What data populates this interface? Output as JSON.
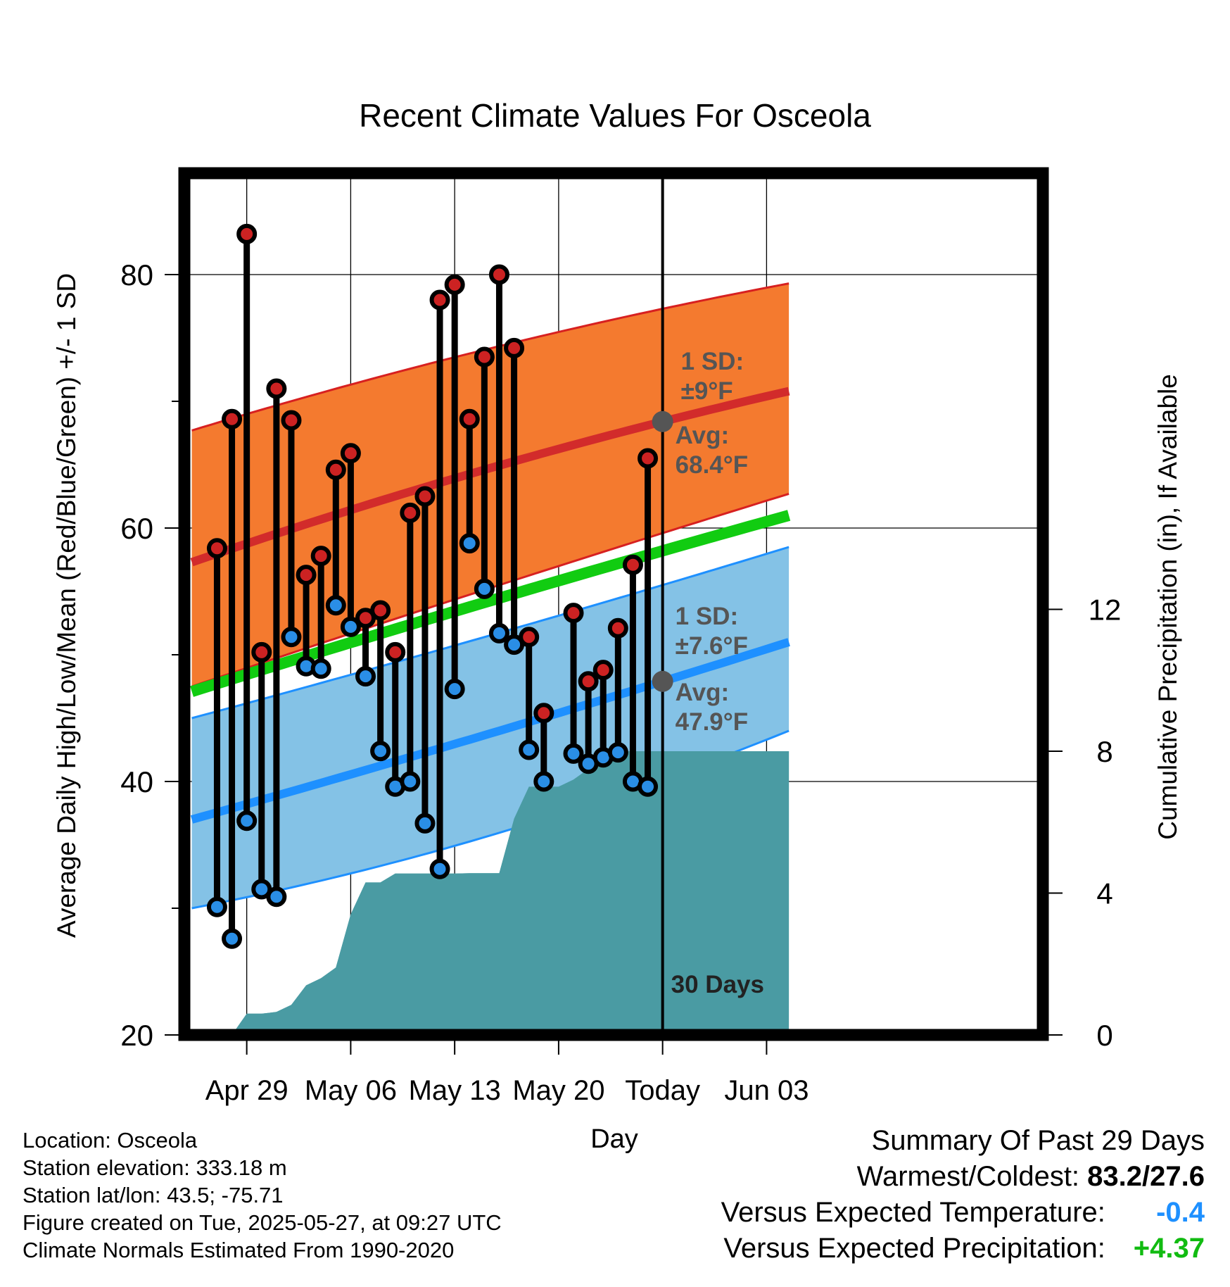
{
  "colors": {
    "background": "#ffffff",
    "frame": "#000000",
    "high_band": "#f47a2f",
    "high_band_edge": "#d72020",
    "high_mean": "#d22b2b",
    "low_band": "#84c2e6",
    "low_band_edge": "#1e90ff",
    "low_mean": "#1e90ff",
    "overall_mean": "#11cc11",
    "precip": "#4a9ba3",
    "high_dot": "#cc2222",
    "low_dot": "#2a8ee6",
    "annotation": "#555555",
    "temp_delta": "#1e90ff",
    "precip_delta": "#11bb11"
  },
  "chart_data": {
    "type": "line",
    "title": "Recent Climate Values For Osceola",
    "xlabel": "Day",
    "ylabel": "Average Daily High/Low/Mean (Red/Blue/Green) +/- 1 SD",
    "y2label": "Cumulative Precipitation (in), If Available",
    "ylim": [
      20,
      88
    ],
    "y2lim": [
      0,
      24.3
    ],
    "yticks": [
      "20",
      "40",
      "60",
      "80"
    ],
    "y2ticks": [
      "0",
      "4",
      "8",
      "12"
    ],
    "xlim": [
      -3.2,
      54.6
    ],
    "x_tick_positions": [
      1,
      8,
      15,
      22,
      29,
      36
    ],
    "x_tick_labels": [
      "Apr 29",
      "May 06",
      "May 13",
      "May 20",
      "Today",
      "Jun 03"
    ],
    "grid": true,
    "today_index": 29,
    "today_label": "30 Days",
    "normals": {
      "x": [
        -2.7,
        29,
        37.5
      ],
      "high_mean": [
        57.3,
        68.4,
        70.8
      ],
      "high_upper": [
        67.7,
        77.3,
        79.3
      ],
      "high_lower": [
        47.5,
        59.6,
        62.7
      ],
      "overall_mean": [
        47.1,
        58.2,
        61.0
      ],
      "low_mean": [
        37.0,
        47.9,
        51.0
      ],
      "low_upper": [
        45.0,
        55.5,
        58.5
      ],
      "low_lower": [
        30.0,
        40.2,
        44.0
      ]
    },
    "high_sd_label": "1 SD:\n±9°F",
    "high_avg_label": "Avg:\n68.4°F",
    "low_sd_label": "1 SD:\n±7.6°F",
    "low_avg_label": "Avg:\n47.9°F",
    "series": [
      {
        "name": "High",
        "x": [
          -1,
          0,
          1,
          2,
          3,
          4,
          5,
          6,
          7,
          8,
          9,
          10,
          11,
          12,
          13,
          14,
          15,
          16,
          17,
          18,
          19,
          20,
          21,
          23,
          24,
          25,
          26,
          27,
          28
        ],
        "values": [
          58.4,
          68.6,
          83.2,
          50.2,
          71.0,
          68.5,
          56.3,
          57.8,
          64.6,
          65.9,
          52.9,
          53.5,
          50.2,
          61.2,
          62.5,
          78.0,
          79.2,
          68.6,
          73.5,
          80.0,
          74.2,
          51.4,
          45.4,
          53.3,
          47.9,
          48.8,
          52.1,
          57.1,
          65.5
        ]
      },
      {
        "name": "Low",
        "x": [
          -1,
          0,
          1,
          2,
          3,
          4,
          5,
          6,
          7,
          8,
          9,
          10,
          11,
          12,
          13,
          14,
          15,
          16,
          17,
          18,
          19,
          20,
          21,
          23,
          24,
          25,
          26,
          27,
          28
        ],
        "values": [
          30.1,
          27.6,
          36.9,
          31.5,
          30.9,
          51.4,
          49.1,
          48.9,
          53.9,
          52.2,
          48.3,
          42.4,
          39.6,
          40.0,
          36.7,
          33.1,
          47.3,
          58.8,
          55.2,
          51.7,
          50.8,
          42.5,
          40.0,
          42.2,
          41.4,
          41.9,
          42.3,
          40.0,
          39.6
        ]
      },
      {
        "name": "Cumulative Precipitation",
        "x": [
          -1,
          0,
          1,
          2,
          3,
          4,
          5,
          6,
          7,
          8,
          9,
          10,
          11,
          12,
          13,
          14,
          15,
          16,
          17,
          18,
          19,
          20,
          21,
          22,
          23,
          24,
          25,
          26,
          27,
          28,
          29,
          37.5
        ],
        "values": [
          0.0,
          0.0,
          0.6,
          0.6,
          0.65,
          0.85,
          1.4,
          1.6,
          1.9,
          3.4,
          4.3,
          4.3,
          4.55,
          4.55,
          4.55,
          4.55,
          4.55,
          4.56,
          4.56,
          4.56,
          6.1,
          7.0,
          7.0,
          7.0,
          7.2,
          7.5,
          7.9,
          8.0,
          8.0,
          8.0,
          8.0,
          8.0
        ]
      }
    ]
  },
  "footer": {
    "left": [
      "Location: Osceola",
      "Station elevation: 333.18 m",
      "Station lat/lon: 43.5; -75.71",
      "Figure created on Tue, 2025-05-27, at 09:27 UTC",
      "Climate Normals Estimated From 1990-2020"
    ],
    "summary_title": "Summary Of Past 29 Days",
    "warmest_coldest_label": "Warmest/Coldest:",
    "warmest_coldest_value": "83.2/27.6",
    "temp_label": "Versus Expected Temperature:",
    "temp_value": "-0.4",
    "precip_label": "Versus Expected Precipitation:",
    "precip_value": "+4.37"
  }
}
